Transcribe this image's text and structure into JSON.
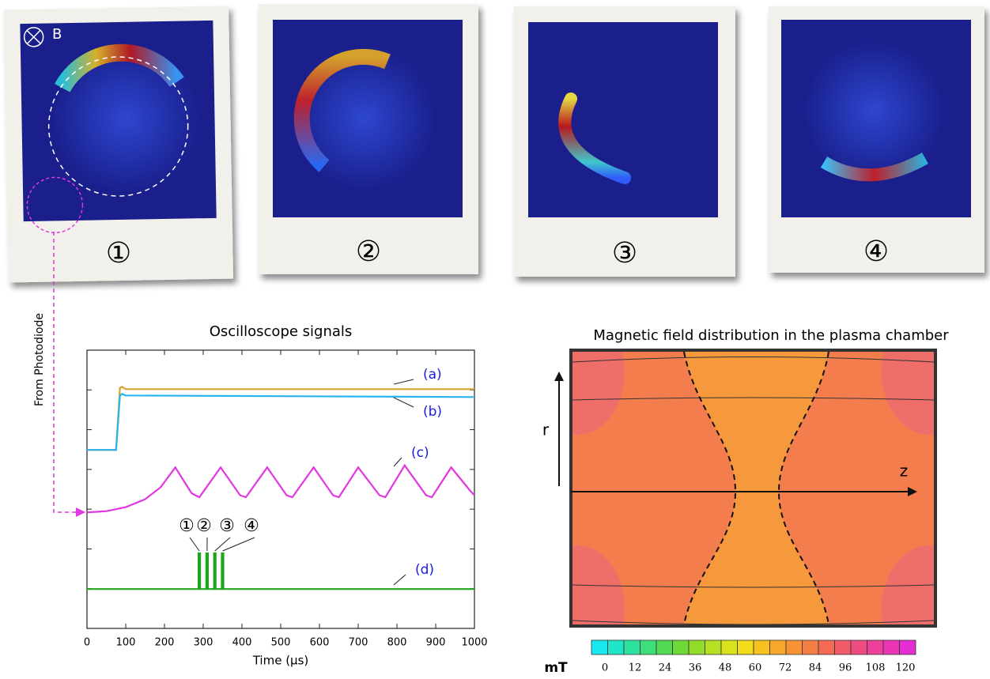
{
  "photos": {
    "labels": [
      "①",
      "②",
      "③",
      "④"
    ],
    "field_label": "B",
    "source_label": "From Photodiode"
  },
  "chart_data": [
    {
      "type": "line",
      "title": "Oscilloscope signals",
      "x_label": "Time (μs)",
      "xlim": [
        0,
        1000
      ],
      "xticks": [
        0,
        100,
        200,
        300,
        400,
        500,
        600,
        700,
        800,
        900,
        1000
      ],
      "ylim": [
        0,
        7
      ],
      "yticks": [
        0,
        1,
        2,
        3,
        4,
        5,
        6,
        7
      ],
      "spike_labels": [
        "①",
        "②",
        "③",
        "④"
      ],
      "series": [
        {
          "name": "(a)",
          "color": "#d4a52a",
          "x": [
            0,
            75,
            85,
            90,
            100,
            1000
          ],
          "values": [
            4.49,
            4.49,
            6.05,
            6.08,
            6.02,
            6.02
          ]
        },
        {
          "name": "(b)",
          "color": "#29b3f0",
          "x": [
            0,
            75,
            85,
            90,
            100,
            1000
          ],
          "values": [
            4.49,
            4.49,
            5.85,
            5.9,
            5.86,
            5.82
          ]
        },
        {
          "name": "(c)",
          "color": "#e236e0",
          "x": [
            0,
            50,
            100,
            150,
            190,
            228,
            270,
            290,
            345,
            395,
            410,
            465,
            515,
            530,
            585,
            635,
            650,
            700,
            755,
            770,
            820,
            875,
            890,
            940,
            990,
            1000
          ],
          "values": [
            2.92,
            2.95,
            3.05,
            3.25,
            3.55,
            4.05,
            3.4,
            3.3,
            4.05,
            3.35,
            3.3,
            4.05,
            3.35,
            3.3,
            4.05,
            3.35,
            3.3,
            4.05,
            3.35,
            3.3,
            4.1,
            3.35,
            3.3,
            4.05,
            3.45,
            3.35
          ]
        },
        {
          "name": "(d)",
          "color": "#1ea51e",
          "x": [
            0,
            288,
            288,
            292,
            292,
            308,
            308,
            312,
            312,
            328,
            328,
            332,
            332,
            348,
            348,
            352,
            352,
            1000
          ],
          "values": [
            0.99,
            0.99,
            1.89,
            1.89,
            0.99,
            0.99,
            1.89,
            1.89,
            0.99,
            0.99,
            1.89,
            1.89,
            0.99,
            0.99,
            1.89,
            1.89,
            0.99,
            0.99
          ]
        }
      ]
    },
    {
      "type": "field_map",
      "title": "Magnetic field distribution in the plasma chamber",
      "r_label": "r",
      "z_label": "z",
      "unit": "mT",
      "clim": [
        0,
        120
      ],
      "cticks": [
        0,
        12,
        24,
        36,
        48,
        60,
        72,
        84,
        96,
        108,
        120
      ],
      "colorscale": [
        "#19e8f0",
        "#1fe6c8",
        "#2ee3a0",
        "#3ede7a",
        "#52d954",
        "#70d93a",
        "#92dc2c",
        "#b6e022",
        "#d8e31e",
        "#f2dc1c",
        "#f7c21f",
        "#f8a82b",
        "#f79236",
        "#f57e45",
        "#f36b55",
        "#f15a68",
        "#ee4c80",
        "#ec409a",
        "#e935b6",
        "#e52ed2"
      ]
    }
  ]
}
